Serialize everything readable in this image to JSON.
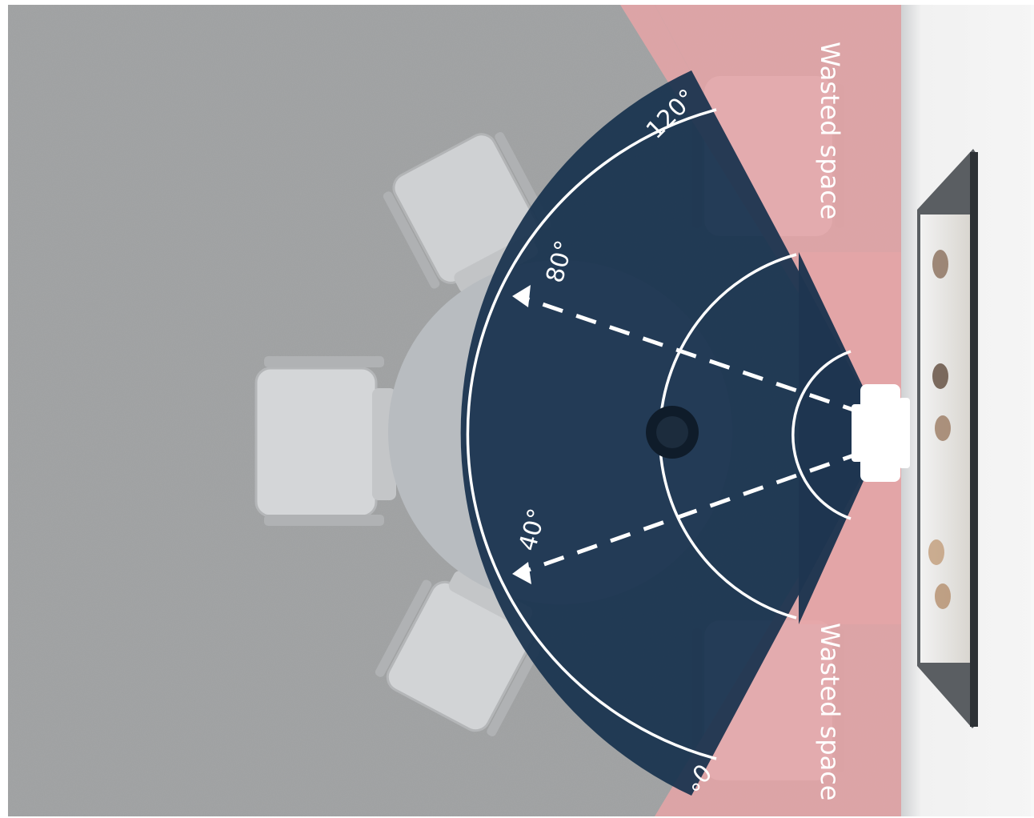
{
  "diagram": {
    "wasted_space_top": "Wasted space",
    "wasted_space_bottom": "Wasted space",
    "angle_120": "120°",
    "angle_80": "80°",
    "angle_40": "40°",
    "angle_0": "0°"
  },
  "colors": {
    "floor": "#9ea0a1",
    "wall": "#ebebeb",
    "wasted_zone": "#e9a5a7",
    "coverage_zone": "#18324d",
    "arc_lines": "#ffffff",
    "table": "#b8bcc0",
    "chair": "#d2d4d6",
    "screen_frame": "#3b3f44"
  },
  "icons": [
    "camera-icon",
    "speakerphone-icon",
    "chair-icon",
    "display-screen-icon",
    "arrow-icon"
  ]
}
